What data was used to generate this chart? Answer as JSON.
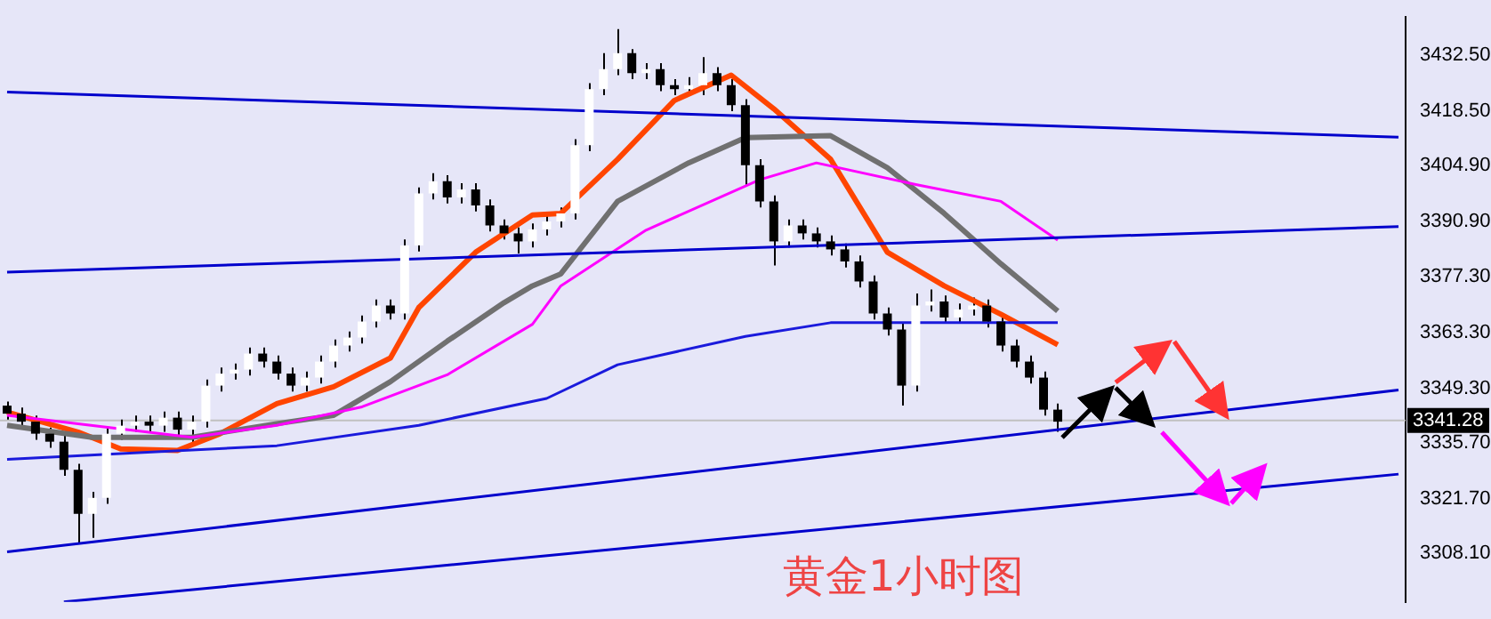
{
  "chart_data": {
    "type": "candlestick",
    "title": "黄金1小时图",
    "tick_labels": "y",
    "grid": false,
    "legend": false,
    "marker": "none",
    "ylim": [
      3296,
      3442
    ],
    "yticks": [
      {
        "value": 3432.5,
        "label": "3432.50"
      },
      {
        "value": 3418.5,
        "label": "3418.50"
      },
      {
        "value": 3404.9,
        "label": "3404.90"
      },
      {
        "value": 3390.9,
        "label": "3390.90"
      },
      {
        "value": 3377.3,
        "label": "3377.30"
      },
      {
        "value": 3363.3,
        "label": "3363.30"
      },
      {
        "value": 3349.3,
        "label": "3349.30"
      },
      {
        "value": 3335.7,
        "label": "3335.70"
      },
      {
        "value": 3321.7,
        "label": "3321.70"
      },
      {
        "value": 3308.1,
        "label": "3308.10"
      }
    ],
    "categories": [
      null,
      null,
      null,
      null,
      null,
      null,
      null,
      null,
      null,
      null,
      null,
      null,
      null,
      null,
      null,
      null,
      null,
      null,
      null,
      null,
      null,
      null,
      null,
      null,
      null,
      null,
      null,
      null,
      null,
      null,
      null,
      null,
      null,
      null,
      null,
      null,
      null,
      null,
      null,
      null,
      null,
      null,
      null,
      null,
      null,
      null,
      null,
      null,
      null,
      null,
      null,
      null,
      null,
      null,
      null,
      null,
      null,
      null,
      null,
      null,
      null,
      null,
      null,
      null,
      null,
      null,
      null,
      null,
      null,
      null,
      null,
      null,
      null,
      null,
      null,
      null,
      null,
      null,
      null,
      null,
      null,
      null,
      null,
      null,
      null,
      null,
      null,
      null,
      null,
      null,
      null,
      null,
      null,
      null,
      null,
      null,
      null,
      null,
      null
    ],
    "ohlc": [
      [
        3345,
        3346,
        3341.5,
        3343
      ],
      [
        3343,
        3344.5,
        3339.5,
        3341
      ],
      [
        3341,
        3342.5,
        3336.5,
        3338
      ],
      [
        3338,
        3339.5,
        3334.5,
        3336
      ],
      [
        3336,
        3337.5,
        3327.5,
        3329
      ],
      [
        3329,
        3330.5,
        3310.5,
        3318
      ],
      [
        3318,
        3323.5,
        3312,
        3322
      ],
      [
        3322,
        3339.5,
        3320.5,
        3338
      ],
      [
        3338,
        3341.5,
        3336.5,
        3340
      ],
      [
        3340,
        3342.5,
        3338.5,
        3341
      ],
      [
        3341,
        3342.5,
        3338.5,
        3340
      ],
      [
        3340,
        3343.5,
        3338.5,
        3342
      ],
      [
        3342,
        3343.5,
        3337.5,
        3339
      ],
      [
        3339,
        3342.5,
        3335.5,
        3341
      ],
      [
        3341,
        3351.5,
        3339.5,
        3350
      ],
      [
        3350,
        3354.5,
        3348.5,
        3353
      ],
      [
        3353,
        3355.5,
        3351.5,
        3354
      ],
      [
        3354,
        3359.5,
        3352.5,
        3358
      ],
      [
        3358,
        3359.5,
        3354.5,
        3356
      ],
      [
        3356,
        3357.5,
        3351.5,
        3353
      ],
      [
        3353,
        3354.5,
        3348.5,
        3350
      ],
      [
        3350,
        3353.5,
        3348.5,
        3352
      ],
      [
        3352,
        3357.5,
        3350.5,
        3356
      ],
      [
        3356,
        3361.5,
        3354.5,
        3360
      ],
      [
        3360,
        3363.5,
        3358.5,
        3362
      ],
      [
        3362,
        3367.5,
        3360.5,
        3366
      ],
      [
        3366,
        3371.5,
        3364.5,
        3370
      ],
      [
        3370,
        3371.5,
        3366.5,
        3368
      ],
      [
        3368,
        3386.5,
        3366.5,
        3385
      ],
      [
        3385,
        3399.5,
        3383.5,
        3398
      ],
      [
        3398,
        3403,
        3396.5,
        3401
      ],
      [
        3401,
        3402.5,
        3395.5,
        3397
      ],
      [
        3397,
        3400.5,
        3395.5,
        3399
      ],
      [
        3399,
        3400.5,
        3393.5,
        3395
      ],
      [
        3395,
        3396.5,
        3388.5,
        3390
      ],
      [
        3390,
        3391.5,
        3386.5,
        3388
      ],
      [
        3388,
        3389.5,
        3383,
        3386
      ],
      [
        3386,
        3390.5,
        3384.5,
        3389
      ],
      [
        3389,
        3392.5,
        3387.5,
        3391
      ],
      [
        3391,
        3394.5,
        3389.5,
        3393
      ],
      [
        3393,
        3411.5,
        3391.5,
        3410
      ],
      [
        3410,
        3425.5,
        3408.5,
        3424
      ],
      [
        3424,
        3433,
        3422.5,
        3429
      ],
      [
        3429,
        3439,
        3427.5,
        3433
      ],
      [
        3433,
        3434,
        3426.5,
        3428
      ],
      [
        3428,
        3430.5,
        3426.5,
        3429
      ],
      [
        3429,
        3430.5,
        3423.5,
        3425
      ],
      [
        3425,
        3426.5,
        3422.5,
        3424
      ],
      [
        3424,
        3427,
        3422.5,
        3425
      ],
      [
        3425,
        3432,
        3422.5,
        3428
      ],
      [
        3428,
        3429.5,
        3423.5,
        3425
      ],
      [
        3425,
        3426.5,
        3418.5,
        3420
      ],
      [
        3420,
        3421.5,
        3400,
        3405
      ],
      [
        3405,
        3406.5,
        3394.5,
        3396
      ],
      [
        3396,
        3397.5,
        3380,
        3386
      ],
      [
        3386,
        3391.5,
        3384.5,
        3390
      ],
      [
        3390,
        3391.5,
        3386.5,
        3388
      ],
      [
        3388,
        3389.5,
        3384.5,
        3386
      ],
      [
        3386,
        3387.5,
        3382.5,
        3384
      ],
      [
        3384,
        3385.5,
        3379.5,
        3381
      ],
      [
        3381,
        3382.5,
        3374.5,
        3376
      ],
      [
        3376,
        3377.5,
        3366.5,
        3368
      ],
      [
        3368,
        3369.5,
        3362.5,
        3364
      ],
      [
        3364,
        3365.5,
        3345,
        3350
      ],
      [
        3350,
        3373,
        3348.5,
        3370
      ],
      [
        3370,
        3374,
        3368.5,
        3371
      ],
      [
        3371,
        3372.5,
        3365.5,
        3367
      ],
      [
        3367,
        3370.5,
        3365.5,
        3369
      ],
      [
        3369,
        3372,
        3367.5,
        3370
      ],
      [
        3370,
        3371.5,
        3364.5,
        3366
      ],
      [
        3366,
        3367.5,
        3358.5,
        3360
      ],
      [
        3360,
        3361.5,
        3354.5,
        3356
      ],
      [
        3356,
        3357.5,
        3350.5,
        3352
      ],
      [
        3352,
        3353.5,
        3342.5,
        3344
      ],
      [
        3344,
        3345.5,
        3338.5,
        3341
      ],
      null,
      null,
      null,
      null,
      null,
      null,
      null,
      null,
      null,
      null,
      null,
      null,
      null,
      null,
      null,
      null,
      null,
      null,
      null,
      null,
      null,
      null,
      null,
      null
    ],
    "series": [
      {
        "type": "line",
        "color": "#0000cc",
        "values": [
          3423.3,
          null,
          null,
          null,
          null,
          null,
          null,
          null,
          null,
          null,
          null,
          null,
          null,
          null,
          null,
          null,
          null,
          null,
          null,
          null,
          null,
          null,
          null,
          null,
          null,
          null,
          null,
          null,
          null,
          null,
          null,
          null,
          null,
          null,
          null,
          null,
          null,
          null,
          null,
          null,
          null,
          null,
          null,
          null,
          null,
          null,
          null,
          null,
          null,
          null,
          null,
          null,
          null,
          null,
          null,
          null,
          null,
          null,
          null,
          null,
          null,
          null,
          null,
          null,
          null,
          null,
          null,
          null,
          null,
          null,
          null,
          null,
          null,
          null,
          null,
          null,
          null,
          null,
          null,
          null,
          null,
          null,
          null,
          null,
          null,
          null,
          null,
          null,
          null,
          null,
          null,
          null,
          null,
          null,
          null,
          null,
          null,
          null,
          3412.0
        ]
      },
      {
        "type": "line",
        "color": "#0000cc",
        "values": [
          3378.3,
          null,
          null,
          null,
          null,
          null,
          null,
          null,
          null,
          null,
          null,
          null,
          null,
          null,
          null,
          null,
          null,
          null,
          null,
          null,
          null,
          null,
          null,
          null,
          null,
          null,
          null,
          null,
          null,
          null,
          null,
          null,
          null,
          null,
          null,
          null,
          null,
          null,
          null,
          null,
          null,
          null,
          null,
          null,
          null,
          null,
          null,
          null,
          null,
          null,
          null,
          null,
          null,
          null,
          null,
          null,
          null,
          null,
          null,
          null,
          null,
          null,
          null,
          null,
          null,
          null,
          null,
          null,
          null,
          null,
          null,
          null,
          null,
          null,
          null,
          null,
          null,
          null,
          null,
          null,
          null,
          null,
          null,
          null,
          null,
          null,
          null,
          null,
          null,
          null,
          null,
          null,
          null,
          null,
          null,
          null,
          null,
          null,
          3389.7
        ]
      },
      {
        "type": "line",
        "color": "#0000cc",
        "values": [
          3308.5,
          null,
          null,
          null,
          null,
          null,
          null,
          null,
          null,
          null,
          null,
          null,
          null,
          null,
          null,
          null,
          null,
          null,
          null,
          null,
          null,
          null,
          null,
          null,
          null,
          null,
          null,
          null,
          null,
          null,
          null,
          null,
          null,
          null,
          null,
          null,
          null,
          null,
          null,
          null,
          null,
          null,
          null,
          null,
          null,
          null,
          null,
          null,
          null,
          null,
          null,
          null,
          null,
          null,
          null,
          null,
          null,
          null,
          null,
          null,
          null,
          null,
          null,
          null,
          null,
          null,
          null,
          null,
          null,
          null,
          null,
          null,
          null,
          null,
          null,
          null,
          null,
          null,
          null,
          null,
          null,
          null,
          null,
          null,
          null,
          null,
          null,
          null,
          null,
          null,
          null,
          null,
          null,
          null,
          null,
          null,
          null,
          null,
          3348.9
        ]
      },
      {
        "type": "line",
        "color": "#0000cc",
        "values": [
          null,
          null,
          null,
          null,
          3296,
          null,
          null,
          null,
          null,
          null,
          null,
          null,
          null,
          null,
          null,
          null,
          null,
          null,
          null,
          null,
          null,
          null,
          null,
          null,
          null,
          null,
          null,
          null,
          null,
          null,
          null,
          null,
          null,
          null,
          null,
          null,
          null,
          null,
          null,
          null,
          null,
          null,
          null,
          null,
          null,
          null,
          null,
          null,
          null,
          null,
          null,
          null,
          null,
          null,
          null,
          null,
          null,
          null,
          null,
          null,
          null,
          null,
          null,
          null,
          null,
          null,
          null,
          null,
          null,
          null,
          null,
          null,
          null,
          null,
          null,
          null,
          null,
          null,
          null,
          null,
          null,
          null,
          null,
          null,
          null,
          null,
          null,
          null,
          null,
          null,
          null,
          null,
          null,
          null,
          null,
          null,
          null,
          null,
          3327.9
        ]
      },
      {
        "type": "line",
        "color": "#1a1adc",
        "values": [
          3331.6,
          null,
          null,
          null,
          null,
          null,
          null,
          null,
          null,
          null,
          null,
          null,
          null,
          null,
          null,
          null,
          null,
          null,
          null,
          3335.0,
          null,
          null,
          null,
          null,
          null,
          null,
          null,
          null,
          null,
          3340.1,
          null,
          null,
          null,
          null,
          null,
          null,
          null,
          null,
          3346.8,
          null,
          null,
          null,
          null,
          3355.2,
          null,
          null,
          null,
          null,
          null,
          null,
          null,
          null,
          3362.3,
          null,
          null,
          null,
          null,
          null,
          3365.7,
          null,
          null,
          null,
          null,
          null,
          3365.7,
          null,
          null,
          null,
          null,
          null,
          null,
          null,
          null,
          null,
          3365.7,
          null,
          null,
          null,
          null,
          null,
          null,
          null,
          null,
          null,
          null,
          null,
          null,
          null,
          null,
          null,
          null,
          null,
          null,
          null,
          null,
          null,
          null,
          null,
          null
        ]
      },
      {
        "type": "line",
        "color": "#ff00ff",
        "values": [
          3342.6,
          null,
          null,
          null,
          null,
          null,
          null,
          null,
          null,
          null,
          null,
          null,
          null,
          3337.1,
          null,
          null,
          null,
          null,
          null,
          3340.1,
          null,
          null,
          null,
          null,
          null,
          3344.7,
          null,
          null,
          null,
          null,
          null,
          3352.7,
          null,
          null,
          null,
          null,
          null,
          3365.3,
          null,
          3374.9,
          null,
          null,
          null,
          null,
          null,
          3388.8,
          null,
          null,
          null,
          null,
          null,
          null,
          null,
          3401.4,
          null,
          null,
          null,
          3405.6,
          null,
          null,
          null,
          null,
          null,
          null,
          3400.2,
          null,
          null,
          null,
          null,
          null,
          3396.0,
          null,
          null,
          null,
          3386.3,
          null,
          null,
          null,
          null,
          null,
          null,
          null,
          null,
          null,
          null,
          null,
          null,
          null,
          null,
          null,
          null,
          null,
          null,
          null,
          null,
          null,
          null,
          null,
          null
        ]
      },
      {
        "type": "line",
        "color": "#707070",
        "values": [
          3340.1,
          null,
          null,
          null,
          null,
          null,
          3337.1,
          null,
          null,
          null,
          null,
          null,
          null,
          3337.1,
          null,
          null,
          null,
          null,
          null,
          3340.5,
          null,
          null,
          null,
          3342.6,
          null,
          null,
          null,
          3351.0,
          null,
          null,
          null,
          3361.1,
          null,
          null,
          null,
          3370.7,
          null,
          3374.9,
          null,
          3377.9,
          null,
          null,
          null,
          3396.0,
          null,
          null,
          null,
          null,
          3405.6,
          null,
          null,
          null,
          3411.9,
          null,
          null,
          null,
          null,
          null,
          3412.4,
          null,
          null,
          null,
          3404.4,
          null,
          null,
          null,
          3393.0,
          null,
          null,
          null,
          3380.4,
          null,
          null,
          null,
          3368.6,
          null,
          null,
          null,
          null,
          null,
          null,
          null,
          null,
          null,
          null,
          null,
          null,
          null,
          null,
          null,
          null,
          null,
          null,
          null,
          null,
          null,
          null,
          null,
          null
        ]
      },
      {
        "type": "line",
        "color": "#ff4500",
        "values": [
          3343.4,
          null,
          null,
          null,
          null,
          3338.4,
          null,
          null,
          3334.2,
          null,
          null,
          null,
          3333.8,
          null,
          null,
          3338.0,
          null,
          null,
          null,
          3345.5,
          null,
          null,
          null,
          3349.7,
          null,
          null,
          null,
          3356.9,
          null,
          3369.5,
          null,
          null,
          null,
          3383.3,
          null,
          null,
          null,
          3392.6,
          null,
          3393.0,
          null,
          null,
          null,
          3406.5,
          null,
          null,
          null,
          3421.2,
          null,
          null,
          null,
          3427.5,
          null,
          null,
          3419.1,
          null,
          null,
          null,
          3406.5,
          null,
          null,
          null,
          3383.3,
          null,
          null,
          null,
          3374.9,
          null,
          null,
          null,
          3367.8,
          null,
          null,
          null,
          3360.2,
          null,
          null,
          null,
          null,
          null,
          null,
          null,
          null,
          null,
          null,
          null,
          null,
          null,
          null,
          null,
          null,
          null,
          null,
          null,
          null,
          null,
          null,
          null,
          null
        ]
      }
    ],
    "ref_lines": [
      {
        "axis": "y",
        "value": 3341.28,
        "label": "3341.28",
        "color": "#c0c0c0"
      }
    ]
  }
}
